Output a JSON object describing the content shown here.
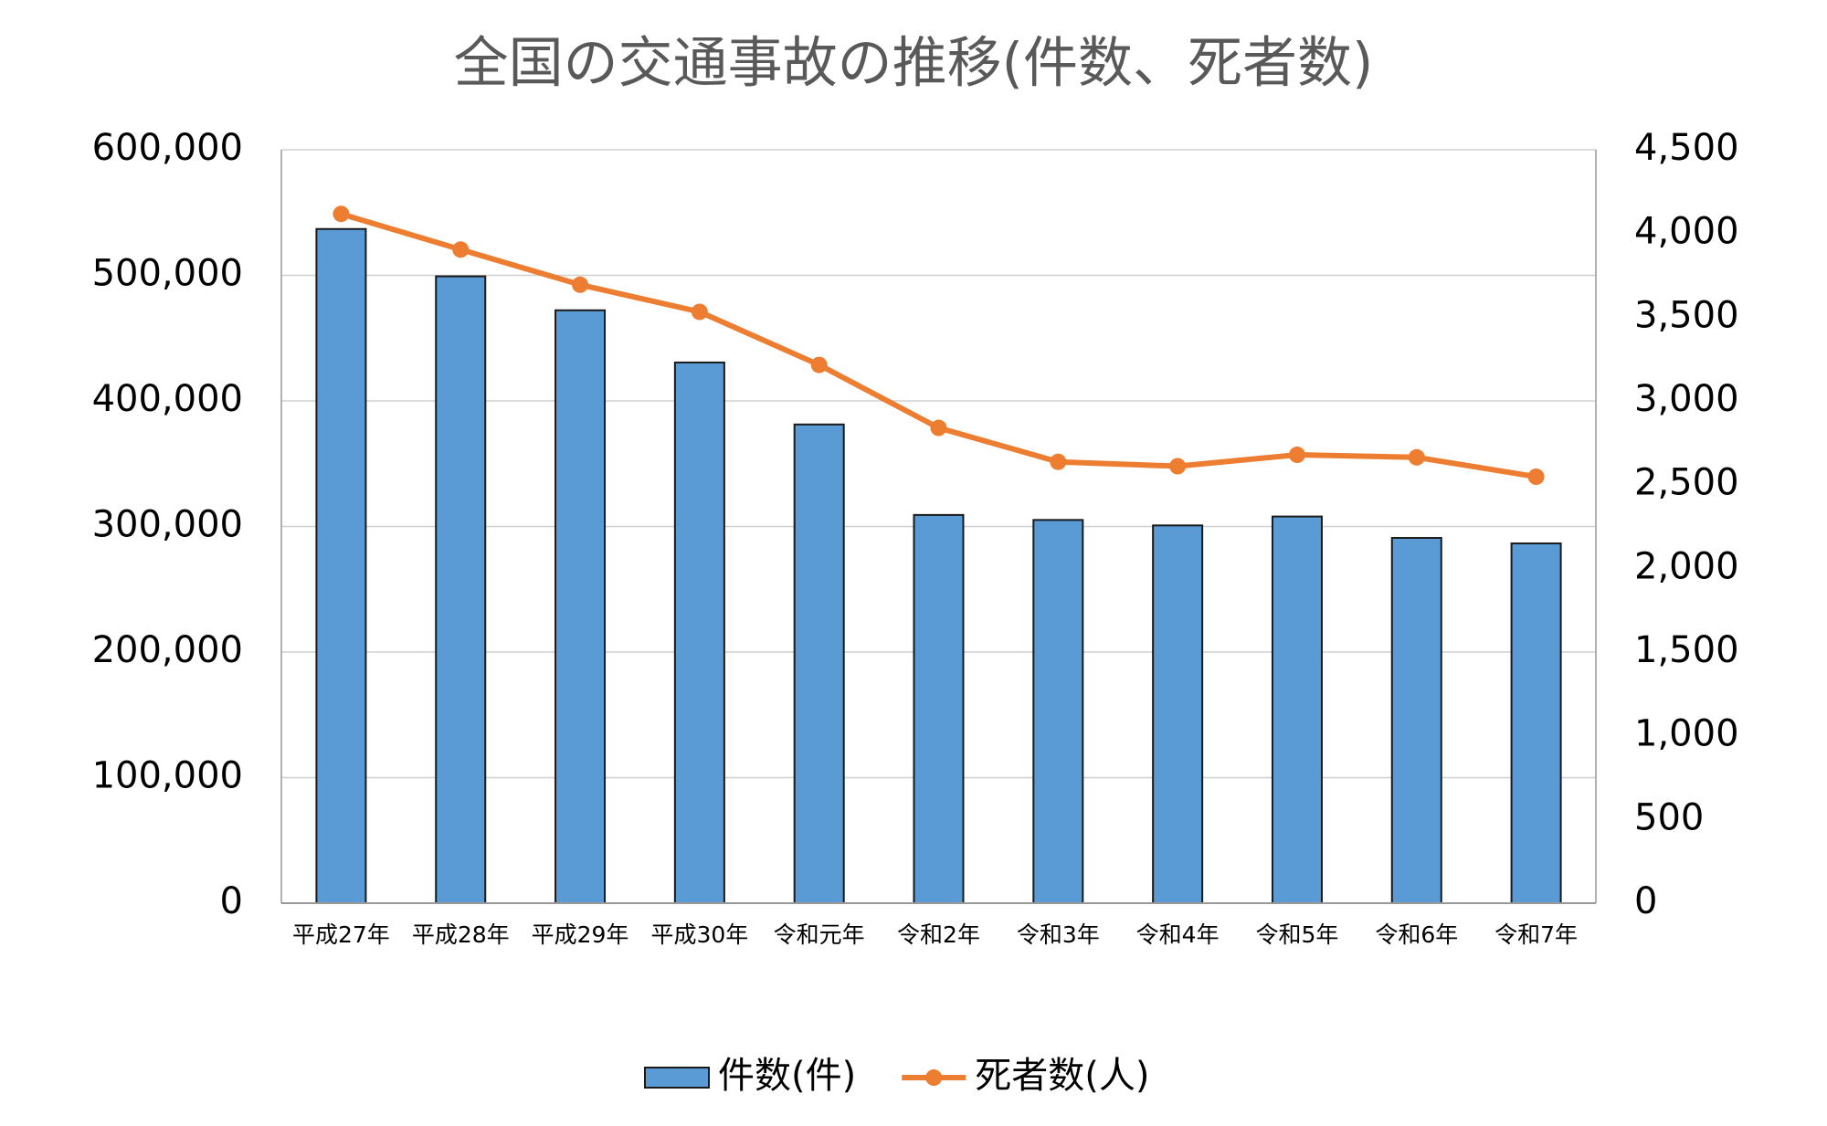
{
  "chart_data": {
    "type": "bar",
    "title": "全国の交通事故の推移(件数、死者数)",
    "categories": [
      "平成27年",
      "平成28年",
      "平成29年",
      "平成30年",
      "令和元年",
      "令和2年",
      "令和3年",
      "令和4年",
      "令和5年",
      "令和6年",
      "令和7年"
    ],
    "series": [
      {
        "name": "件数(件)",
        "color": "#5b9bd5",
        "type": "bar",
        "axis": "y",
        "values": [
          536899,
          499201,
          472165,
          430601,
          381237,
          309178,
          305196,
          300839,
          307930,
          290895,
          286500
        ]
      },
      {
        "name": "死者数(人)",
        "color": "#ed7d31",
        "type": "line",
        "axis": "y2",
        "values": [
          4117,
          3904,
          3694,
          3532,
          3215,
          2839,
          2636,
          2610,
          2678,
          2663,
          2547
        ]
      }
    ],
    "ylim": [
      0,
      600000
    ],
    "yticks": [
      0,
      {
        "value": 100000,
        "label": "100,000"
      },
      {
        "value": 200000,
        "label": "200,000"
      },
      {
        "value": 300000,
        "label": "300,000"
      },
      {
        "value": 400000,
        "label": "400,000"
      },
      {
        "value": 500000,
        "label": "500,000"
      },
      {
        "value": 600000,
        "label": "600,000"
      }
    ],
    "y2lim": [
      0,
      4500
    ],
    "y2ticks": [
      0,
      500,
      {
        "value": 1000,
        "label": "1,000"
      },
      {
        "value": 1500,
        "label": "1,500"
      },
      {
        "value": 2000,
        "label": "2,000"
      },
      {
        "value": 2500,
        "label": "2,500"
      },
      {
        "value": 3000,
        "label": "3,000"
      },
      {
        "value": 3500,
        "label": "3,500"
      },
      {
        "value": 4000,
        "label": "4,000"
      },
      {
        "value": 4500,
        "label": "4,500"
      }
    ],
    "grid": true,
    "legend": "bottom"
  }
}
